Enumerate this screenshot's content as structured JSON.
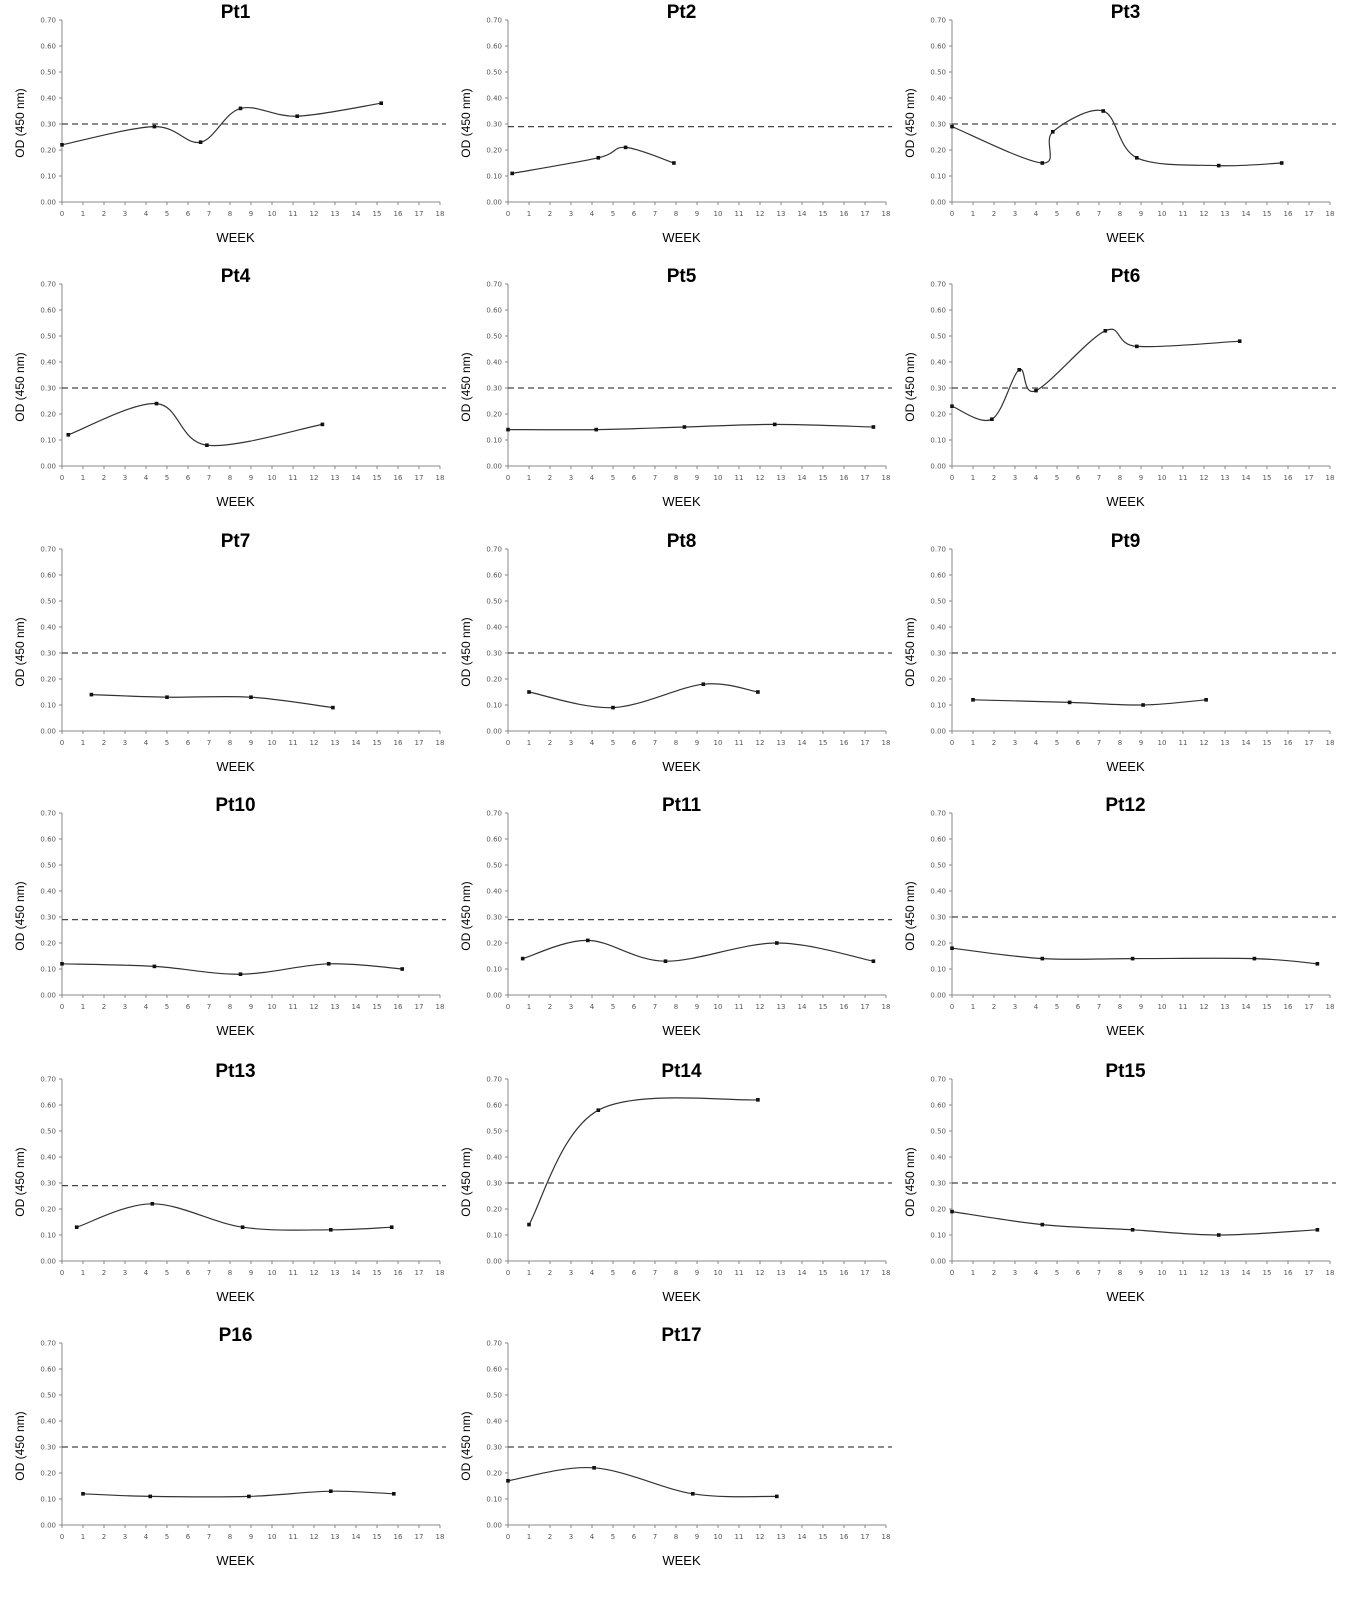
{
  "chart_data": [
    {
      "type": "line",
      "title": "Pt1",
      "xlabel": "WEEK",
      "ylabel": "OD (450 nm)",
      "xlim": [
        0,
        18
      ],
      "ylim": [
        0,
        0.7
      ],
      "xticks": [
        "0",
        "1",
        "2",
        "3",
        "4",
        "5",
        "6",
        "7",
        "8",
        "9",
        "10",
        "11",
        "12",
        "13",
        "14",
        "15",
        "16",
        "17",
        "18"
      ],
      "yticks": [
        "0.00",
        "0.10",
        "0.20",
        "0.30",
        "0.40",
        "0.50",
        "0.60",
        "0.70"
      ],
      "cutoff": 0.3,
      "x": [
        0,
        4.4,
        6.6,
        8.5,
        11.2,
        15.2
      ],
      "y": [
        0.22,
        0.29,
        0.23,
        0.36,
        0.33,
        0.38
      ]
    },
    {
      "type": "line",
      "title": "Pt2",
      "xlabel": "WEEK",
      "ylabel": "OD (450 nm)",
      "xlim": [
        0,
        18
      ],
      "ylim": [
        0,
        0.7
      ],
      "xticks": [
        "0",
        "1",
        "2",
        "3",
        "4",
        "5",
        "6",
        "7",
        "8",
        "9",
        "10",
        "11",
        "12",
        "13",
        "14",
        "15",
        "16",
        "17",
        "18"
      ],
      "yticks": [
        "0.00",
        "0.10",
        "0.20",
        "0.30",
        "0.40",
        "0.50",
        "0.60",
        "0.70"
      ],
      "cutoff": 0.29,
      "x": [
        0.2,
        4.3,
        5.6,
        7.9
      ],
      "y": [
        0.11,
        0.17,
        0.21,
        0.15
      ]
    },
    {
      "type": "line",
      "title": "Pt3",
      "xlabel": "WEEK",
      "ylabel": "OD (450 nm)",
      "xlim": [
        0,
        18
      ],
      "ylim": [
        0,
        0.7
      ],
      "xticks": [
        "0",
        "1",
        "2",
        "3",
        "4",
        "5",
        "6",
        "7",
        "8",
        "9",
        "10",
        "11",
        "12",
        "13",
        "14",
        "15",
        "16",
        "17",
        "18"
      ],
      "yticks": [
        "0.00",
        "0.10",
        "0.20",
        "0.30",
        "0.40",
        "0.50",
        "0.60",
        "0.70"
      ],
      "cutoff": 0.3,
      "x": [
        0,
        4.3,
        4.8,
        7.2,
        8.8,
        12.7,
        15.7
      ],
      "y": [
        0.29,
        0.15,
        0.27,
        0.35,
        0.17,
        0.14,
        0.15
      ]
    },
    {
      "type": "line",
      "title": "Pt4",
      "xlabel": "WEEK",
      "ylabel": "OD (450 nm)",
      "xlim": [
        0,
        18
      ],
      "ylim": [
        0,
        0.7
      ],
      "xticks": [
        "0",
        "1",
        "2",
        "3",
        "4",
        "5",
        "6",
        "7",
        "8",
        "9",
        "10",
        "11",
        "12",
        "13",
        "14",
        "15",
        "16",
        "17",
        "18"
      ],
      "yticks": [
        "0.00",
        "0.10",
        "0.20",
        "0.30",
        "0.40",
        "0.50",
        "0.60",
        "0.70"
      ],
      "cutoff": 0.3,
      "x": [
        0.3,
        4.5,
        6.9,
        12.4
      ],
      "y": [
        0.12,
        0.24,
        0.08,
        0.16
      ]
    },
    {
      "type": "line",
      "title": "Pt5",
      "xlabel": "WEEK",
      "ylabel": "OD (450 nm)",
      "xlim": [
        0,
        18
      ],
      "ylim": [
        0,
        0.7
      ],
      "xticks": [
        "0",
        "1",
        "2",
        "3",
        "4",
        "5",
        "6",
        "7",
        "8",
        "9",
        "10",
        "11",
        "12",
        "13",
        "14",
        "15",
        "16",
        "17",
        "18"
      ],
      "yticks": [
        "0.00",
        "0.10",
        "0.20",
        "0.30",
        "0.40",
        "0.50",
        "0.60",
        "0.70"
      ],
      "cutoff": 0.3,
      "x": [
        0,
        4.2,
        8.4,
        12.7,
        17.4
      ],
      "y": [
        0.14,
        0.14,
        0.15,
        0.16,
        0.15
      ]
    },
    {
      "type": "line",
      "title": "Pt6",
      "xlabel": "WEEK",
      "ylabel": "OD (450 nm)",
      "xlim": [
        0,
        18
      ],
      "ylim": [
        0,
        0.7
      ],
      "xticks": [
        "0",
        "1",
        "2",
        "3",
        "4",
        "5",
        "6",
        "7",
        "8",
        "9",
        "10",
        "11",
        "12",
        "13",
        "14",
        "15",
        "16",
        "17",
        "18"
      ],
      "yticks": [
        "0.00",
        "0.10",
        "0.20",
        "0.30",
        "0.40",
        "0.50",
        "0.60",
        "0.70"
      ],
      "cutoff": 0.3,
      "x": [
        0,
        1.9,
        3.2,
        4,
        7.3,
        8.8,
        13.7
      ],
      "y": [
        0.23,
        0.18,
        0.37,
        0.29,
        0.52,
        0.46,
        0.48
      ]
    },
    {
      "type": "line",
      "title": "Pt7",
      "xlabel": "WEEK",
      "ylabel": "OD (450 nm)",
      "xlim": [
        0,
        18
      ],
      "ylim": [
        0,
        0.7
      ],
      "xticks": [
        "0",
        "1",
        "2",
        "3",
        "4",
        "5",
        "6",
        "7",
        "8",
        "9",
        "10",
        "11",
        "12",
        "13",
        "14",
        "15",
        "16",
        "17",
        "18"
      ],
      "yticks": [
        "0.00",
        "0.10",
        "0.20",
        "0.30",
        "0.40",
        "0.50",
        "0.60",
        "0.70"
      ],
      "cutoff": 0.3,
      "x": [
        1.4,
        5,
        9,
        12.9
      ],
      "y": [
        0.14,
        0.13,
        0.13,
        0.09
      ]
    },
    {
      "type": "line",
      "title": "Pt8",
      "xlabel": "WEEK",
      "ylabel": "OD (450 nm)",
      "xlim": [
        0,
        18
      ],
      "ylim": [
        0,
        0.7
      ],
      "xticks": [
        "0",
        "1",
        "2",
        "3",
        "4",
        "5",
        "6",
        "7",
        "8",
        "9",
        "10",
        "11",
        "12",
        "13",
        "14",
        "15",
        "16",
        "17",
        "18"
      ],
      "yticks": [
        "0.00",
        "0.10",
        "0.20",
        "0.30",
        "0.40",
        "0.50",
        "0.60",
        "0.70"
      ],
      "cutoff": 0.3,
      "x": [
        1,
        5,
        9.3,
        11.9
      ],
      "y": [
        0.15,
        0.09,
        0.18,
        0.15
      ]
    },
    {
      "type": "line",
      "title": "Pt9",
      "xlabel": "WEEK",
      "ylabel": "OD (450 nm)",
      "xlim": [
        0,
        18
      ],
      "ylim": [
        0,
        0.7
      ],
      "xticks": [
        "0",
        "1",
        "2",
        "3",
        "4",
        "5",
        "6",
        "7",
        "8",
        "9",
        "10",
        "11",
        "12",
        "13",
        "14",
        "15",
        "16",
        "17",
        "18"
      ],
      "yticks": [
        "0.00",
        "0.10",
        "0.20",
        "0.30",
        "0.40",
        "0.50",
        "0.60",
        "0.70"
      ],
      "cutoff": 0.3,
      "x": [
        1,
        5.6,
        9.1,
        12.1
      ],
      "y": [
        0.12,
        0.11,
        0.1,
        0.12
      ]
    },
    {
      "type": "line",
      "title": "Pt10",
      "xlabel": "WEEK",
      "ylabel": "OD (450 nm)",
      "xlim": [
        0,
        18
      ],
      "ylim": [
        0,
        0.7
      ],
      "xticks": [
        "0",
        "1",
        "2",
        "3",
        "4",
        "5",
        "6",
        "7",
        "8",
        "9",
        "10",
        "11",
        "12",
        "13",
        "14",
        "15",
        "16",
        "17",
        "18"
      ],
      "yticks": [
        "0.00",
        "0.10",
        "0.20",
        "0.30",
        "0.40",
        "0.50",
        "0.60",
        "0.70"
      ],
      "cutoff": 0.29,
      "x": [
        0,
        4.4,
        8.5,
        12.7,
        16.2
      ],
      "y": [
        0.12,
        0.11,
        0.08,
        0.12,
        0.1
      ]
    },
    {
      "type": "line",
      "title": "Pt11",
      "xlabel": "WEEK",
      "ylabel": "OD (450 nm)",
      "xlim": [
        0,
        18
      ],
      "ylim": [
        0,
        0.7
      ],
      "xticks": [
        "0",
        "1",
        "2",
        "3",
        "4",
        "5",
        "6",
        "7",
        "8",
        "9",
        "10",
        "11",
        "12",
        "13",
        "14",
        "15",
        "16",
        "17",
        "18"
      ],
      "yticks": [
        "0.00",
        "0.10",
        "0.20",
        "0.30",
        "0.40",
        "0.50",
        "0.60",
        "0.70"
      ],
      "cutoff": 0.29,
      "x": [
        0.7,
        3.8,
        7.5,
        12.8,
        17.4
      ],
      "y": [
        0.14,
        0.21,
        0.13,
        0.2,
        0.13
      ]
    },
    {
      "type": "line",
      "title": "Pt12",
      "xlabel": "WEEK",
      "ylabel": "OD (450 nm)",
      "xlim": [
        0,
        18
      ],
      "ylim": [
        0,
        0.7
      ],
      "xticks": [
        "0",
        "1",
        "2",
        "3",
        "4",
        "5",
        "6",
        "7",
        "8",
        "9",
        "10",
        "11",
        "12",
        "13",
        "14",
        "15",
        "16",
        "17",
        "18"
      ],
      "yticks": [
        "0.00",
        "0.10",
        "0.20",
        "0.30",
        "0.40",
        "0.50",
        "0.60",
        "0.70"
      ],
      "cutoff": 0.3,
      "x": [
        0,
        4.3,
        8.6,
        14.4,
        17.4
      ],
      "y": [
        0.18,
        0.14,
        0.14,
        0.14,
        0.12
      ]
    },
    {
      "type": "line",
      "title": "Pt13",
      "xlabel": "WEEK",
      "ylabel": "OD (450 nm)",
      "xlim": [
        0,
        18
      ],
      "ylim": [
        0,
        0.7
      ],
      "xticks": [
        "0",
        "1",
        "2",
        "3",
        "4",
        "5",
        "6",
        "7",
        "8",
        "9",
        "10",
        "11",
        "12",
        "13",
        "14",
        "15",
        "16",
        "17",
        "18"
      ],
      "yticks": [
        "0.00",
        "0.10",
        "0.20",
        "0.30",
        "0.40",
        "0.50",
        "0.60",
        "0.70"
      ],
      "cutoff": 0.29,
      "x": [
        0.7,
        4.3,
        8.6,
        12.8,
        15.7
      ],
      "y": [
        0.13,
        0.22,
        0.13,
        0.12,
        0.13
      ]
    },
    {
      "type": "line",
      "title": "Pt14",
      "xlabel": "WEEK",
      "ylabel": "OD (450 nm)",
      "xlim": [
        0,
        18
      ],
      "ylim": [
        0,
        0.7
      ],
      "xticks": [
        "0",
        "1",
        "2",
        "3",
        "4",
        "5",
        "6",
        "7",
        "8",
        "9",
        "10",
        "11",
        "12",
        "13",
        "14",
        "15",
        "16",
        "17",
        "18"
      ],
      "yticks": [
        "0.00",
        "0.10",
        "0.20",
        "0.30",
        "0.40",
        "0.50",
        "0.60",
        "0.70"
      ],
      "cutoff": 0.3,
      "x": [
        1,
        4.3,
        11.9
      ],
      "y": [
        0.14,
        0.58,
        0.62
      ]
    },
    {
      "type": "line",
      "title": "Pt15",
      "xlabel": "WEEK",
      "ylabel": "OD (450 nm)",
      "xlim": [
        0,
        18
      ],
      "ylim": [
        0,
        0.7
      ],
      "xticks": [
        "0",
        "1",
        "2",
        "3",
        "4",
        "5",
        "6",
        "7",
        "8",
        "9",
        "10",
        "11",
        "12",
        "13",
        "14",
        "15",
        "16",
        "17",
        "18"
      ],
      "yticks": [
        "0.00",
        "0.10",
        "0.20",
        "0.30",
        "0.40",
        "0.50",
        "0.60",
        "0.70"
      ],
      "cutoff": 0.3,
      "x": [
        0,
        4.3,
        8.6,
        12.7,
        17.4
      ],
      "y": [
        0.19,
        0.14,
        0.12,
        0.1,
        0.12
      ]
    },
    {
      "type": "line",
      "title": "P16",
      "xlabel": "WEEK",
      "ylabel": "OD (450 nm)",
      "xlim": [
        0,
        18
      ],
      "ylim": [
        0,
        0.7
      ],
      "xticks": [
        "0",
        "1",
        "2",
        "3",
        "4",
        "5",
        "6",
        "7",
        "8",
        "9",
        "10",
        "11",
        "12",
        "13",
        "14",
        "15",
        "16",
        "17",
        "18"
      ],
      "yticks": [
        "0.00",
        "0.10",
        "0.20",
        "0.30",
        "0.40",
        "0.50",
        "0.60",
        "0.70"
      ],
      "cutoff": 0.3,
      "x": [
        1,
        4.2,
        8.9,
        12.8,
        15.8
      ],
      "y": [
        0.12,
        0.11,
        0.11,
        0.13,
        0.12
      ]
    },
    {
      "type": "line",
      "title": "Pt17",
      "xlabel": "WEEK",
      "ylabel": "OD (450 nm)",
      "xlim": [
        0,
        18
      ],
      "ylim": [
        0,
        0.7
      ],
      "xticks": [
        "0",
        "1",
        "2",
        "3",
        "4",
        "5",
        "6",
        "7",
        "8",
        "9",
        "10",
        "11",
        "12",
        "13",
        "14",
        "15",
        "16",
        "17",
        "18"
      ],
      "yticks": [
        "0.00",
        "0.10",
        "0.20",
        "0.30",
        "0.40",
        "0.50",
        "0.60",
        "0.70"
      ],
      "cutoff": 0.3,
      "x": [
        0,
        4.1,
        8.8,
        12.8
      ],
      "y": [
        0.17,
        0.22,
        0.12,
        0.11
      ]
    }
  ]
}
